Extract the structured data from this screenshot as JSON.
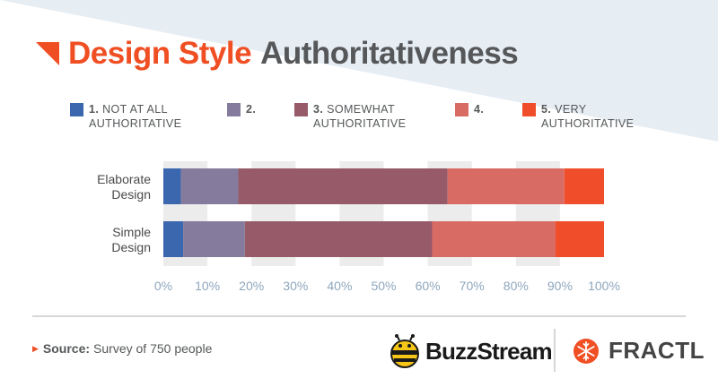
{
  "title": {
    "accent": "Design Style",
    "rest": "Authoritativeness"
  },
  "legend": [
    {
      "num": "1.",
      "line1": "NOT AT ALL",
      "line2": "AUTHORITATIVE",
      "color": "#3a67ae"
    },
    {
      "num": "2.",
      "line1": "",
      "line2": "",
      "color": "#857b9d"
    },
    {
      "num": "3.",
      "line1": "SOMEWHAT",
      "line2": "AUTHORITATIVE",
      "color": "#975a69"
    },
    {
      "num": "4.",
      "line1": "",
      "line2": "",
      "color": "#d86c64"
    },
    {
      "num": "5.",
      "line1": "VERY",
      "line2": "AUTHORITATIVE",
      "color": "#f04e2a"
    }
  ],
  "chart_data": {
    "type": "bar",
    "orientation": "horizontal",
    "stacked": true,
    "title": "Design Style Authoritativeness",
    "categories": [
      "Elaborate Design",
      "Simple Design"
    ],
    "category_lines": [
      [
        "Elaborate",
        "Design"
      ],
      [
        "Simple",
        "Design"
      ]
    ],
    "series": [
      {
        "name": "1. NOT AT ALL AUTHORITATIVE",
        "values": [
          4,
          4.5
        ],
        "color": "#3a67ae"
      },
      {
        "name": "2.",
        "values": [
          13,
          14
        ],
        "color": "#857b9d"
      },
      {
        "name": "3. SOMEWHAT AUTHORITATIVE",
        "values": [
          47.5,
          42.5
        ],
        "color": "#975a69"
      },
      {
        "name": "4.",
        "values": [
          26.5,
          28
        ],
        "color": "#d86c64"
      },
      {
        "name": "5. VERY AUTHORITATIVE",
        "values": [
          9,
          11
        ],
        "color": "#f04e2a"
      }
    ],
    "xlim": [
      0,
      100
    ],
    "xticks": [
      "0%",
      "10%",
      "20%",
      "30%",
      "40%",
      "50%",
      "60%",
      "70%",
      "80%",
      "90%",
      "100%"
    ],
    "grid": "alternating vertical bands"
  },
  "source": {
    "label": "Source:",
    "text": "Survey of 750 people"
  },
  "logos": {
    "buzzstream": "BuzzStream",
    "fractl": "FRACTL"
  },
  "colors": {
    "accent": "#f04e23",
    "text": "#555759",
    "band": "#ececec",
    "tick": "#8ea6bd",
    "wedge": "#e6edf3"
  }
}
